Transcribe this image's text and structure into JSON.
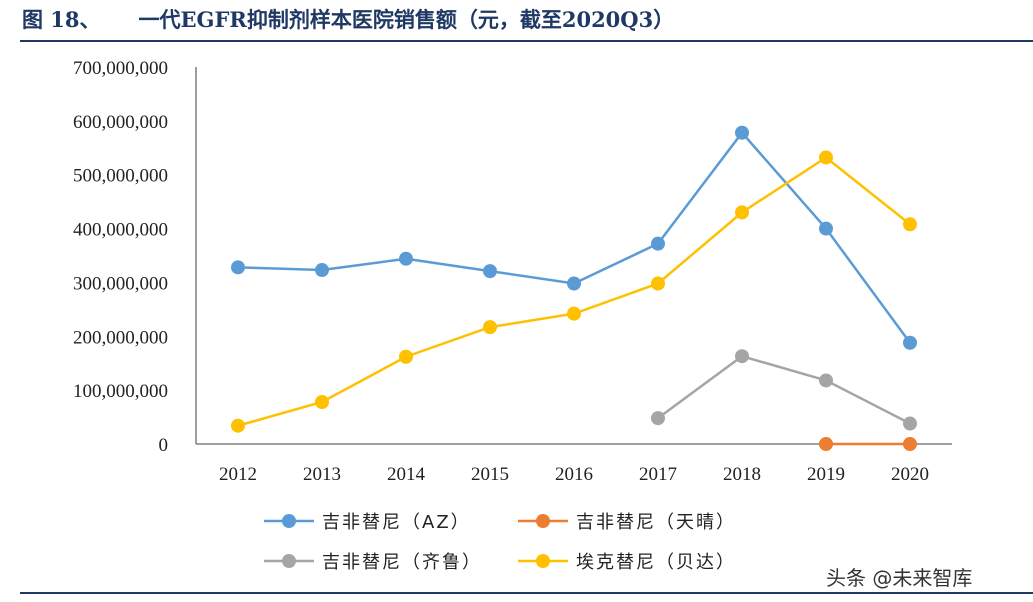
{
  "figure": {
    "number": "图 18、",
    "title": "一代EGFR抑制剂样本医院销售额（元，截至2020Q3）"
  },
  "watermark": "头条 @未来智库",
  "chart_data": {
    "type": "line",
    "title": "一代EGFR抑制剂样本医院销售额（元，截至2020Q3）",
    "xlabel": "",
    "ylabel": "",
    "categories": [
      "2012",
      "2013",
      "2014",
      "2015",
      "2016",
      "2017",
      "2018",
      "2019",
      "2020"
    ],
    "ylim": [
      0,
      700000000
    ],
    "yticks": [
      0,
      100000000,
      200000000,
      300000000,
      400000000,
      500000000,
      600000000,
      700000000
    ],
    "ytick_labels": [
      "0",
      "100,000,000",
      "200,000,000",
      "300,000,000",
      "400,000,000",
      "500,000,000",
      "600,000,000",
      "700,000,000"
    ],
    "grid": false,
    "legend_position": "bottom",
    "series": [
      {
        "name": "吉非替尼（AZ）",
        "color": "#5b9bd5",
        "values": [
          328000000,
          323000000,
          344000000,
          321000000,
          298000000,
          372000000,
          578000000,
          400000000,
          188000000
        ]
      },
      {
        "name": "吉非替尼（天晴）",
        "color": "#ed7d31",
        "values": [
          null,
          null,
          null,
          null,
          null,
          null,
          null,
          0,
          0
        ]
      },
      {
        "name": "吉非替尼（齐鲁）",
        "color": "#a5a5a5",
        "values": [
          null,
          null,
          null,
          null,
          null,
          48000000,
          163000000,
          118000000,
          38000000
        ]
      },
      {
        "name": "埃克替尼（贝达）",
        "color": "#ffc000",
        "values": [
          34000000,
          78000000,
          162000000,
          217000000,
          242000000,
          298000000,
          430000000,
          532000000,
          408000000
        ]
      }
    ]
  }
}
